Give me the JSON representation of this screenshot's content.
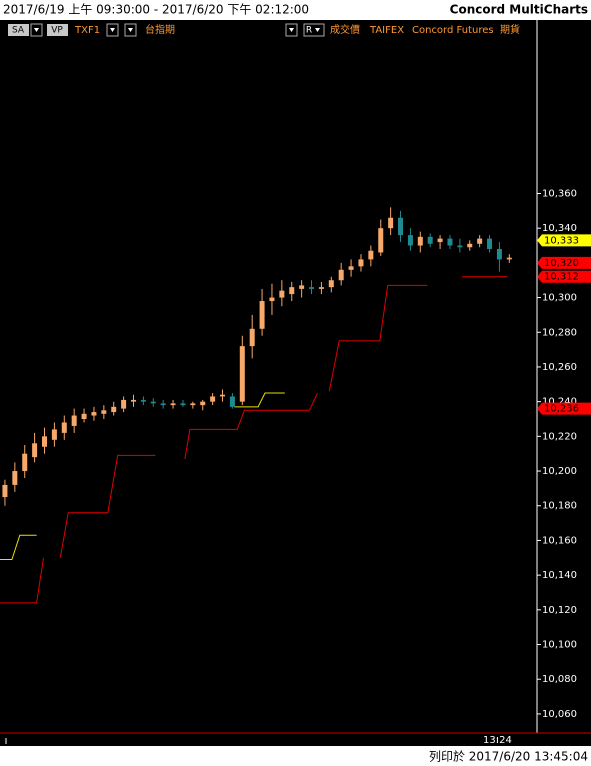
{
  "chart_data": {
    "type": "candlestick",
    "title": "2017/6/19 上午 09:30:00 - 2017/6/20 下午 02:12:00",
    "app_name": "Concord MultiCharts",
    "toolbar_left": [
      "SA",
      "VP",
      "TXF1",
      "台指期"
    ],
    "toolbar_right": [
      "R",
      "成交價",
      "TAIFEX",
      "Concord Futures",
      "期貨"
    ],
    "footer": "列印於 2017/6/20 13:45:04",
    "up_color": "#f6a96b",
    "down_color": "#1f8a8f",
    "ylim": [
      10049,
      10460
    ],
    "yticks": [
      {
        "value": 10060,
        "label": "10,060"
      },
      {
        "value": 10080,
        "label": "10,080"
      },
      {
        "value": 10100,
        "label": "10,100"
      },
      {
        "value": 10120,
        "label": "10,120"
      },
      {
        "value": 10140,
        "label": "10,140"
      },
      {
        "value": 10160,
        "label": "10,160"
      },
      {
        "value": 10180,
        "label": "10,180"
      },
      {
        "value": 10200,
        "label": "10,200"
      },
      {
        "value": 10220,
        "label": "10,220"
      },
      {
        "value": 10240,
        "label": "10,240"
      },
      {
        "value": 10260,
        "label": "10,260"
      },
      {
        "value": 10280,
        "label": "10,280"
      },
      {
        "value": 10300,
        "label": "10,300"
      },
      {
        "value": 10320,
        "label": "10,320"
      },
      {
        "value": 10340,
        "label": "10,340"
      },
      {
        "value": 10360,
        "label": "10,360"
      }
    ],
    "xlim": [
      -0.5,
      53.8
    ],
    "xticks": [
      {
        "value": 49.8,
        "label": "13:24"
      }
    ],
    "ohlc": [
      [
        10185,
        10195,
        10180,
        10192
      ],
      [
        10192,
        10205,
        10188,
        10200
      ],
      [
        10200,
        10215,
        10196,
        10210
      ],
      [
        10208,
        10222,
        10205,
        10216
      ],
      [
        10214,
        10225,
        10210,
        10220
      ],
      [
        10218,
        10228,
        10214,
        10224
      ],
      [
        10222,
        10232,
        10218,
        10228
      ],
      [
        10226,
        10236,
        10222,
        10232
      ],
      [
        10230,
        10236,
        10228,
        10233
      ],
      [
        10232,
        10237,
        10229,
        10234
      ],
      [
        10233,
        10238,
        10230,
        10235
      ],
      [
        10234,
        10240,
        10232,
        10237
      ],
      [
        10236,
        10243,
        10234,
        10241
      ],
      [
        10240,
        10244,
        10237,
        10241
      ],
      [
        10241,
        10243,
        10238,
        10240
      ],
      [
        10240,
        10242,
        10237,
        10239
      ],
      [
        10239,
        10241,
        10236,
        10238
      ],
      [
        10238,
        10241,
        10236,
        10239
      ],
      [
        10239,
        10241,
        10237,
        10238
      ],
      [
        10238,
        10240,
        10236,
        10239
      ],
      [
        10238,
        10241,
        10235,
        10240
      ],
      [
        10240,
        10245,
        10238,
        10243
      ],
      [
        10243,
        10247,
        10240,
        10244
      ],
      [
        10243,
        10245,
        10236,
        10237
      ],
      [
        10240,
        10278,
        10238,
        10272
      ],
      [
        10272,
        10290,
        10265,
        10282
      ],
      [
        10282,
        10305,
        10278,
        10298
      ],
      [
        10298,
        10308,
        10290,
        10300
      ],
      [
        10300,
        10310,
        10295,
        10304
      ],
      [
        10302,
        10309,
        10298,
        10306
      ],
      [
        10305,
        10310,
        10300,
        10307
      ],
      [
        10306,
        10310,
        10302,
        10305
      ],
      [
        10305,
        10309,
        10302,
        10306
      ],
      [
        10306,
        10312,
        10303,
        10310
      ],
      [
        10310,
        10320,
        10307,
        10316
      ],
      [
        10316,
        10322,
        10312,
        10318
      ],
      [
        10318,
        10325,
        10315,
        10322
      ],
      [
        10322,
        10330,
        10318,
        10327
      ],
      [
        10326,
        10345,
        10324,
        10340
      ],
      [
        10340,
        10352,
        10336,
        10346
      ],
      [
        10346,
        10350,
        10332,
        10336
      ],
      [
        10336,
        10340,
        10327,
        10330
      ],
      [
        10330,
        10338,
        10326,
        10335
      ],
      [
        10335,
        10337,
        10329,
        10331
      ],
      [
        10332,
        10336,
        10328,
        10334
      ],
      [
        10334,
        10336,
        10328,
        10330
      ],
      [
        10330,
        10334,
        10326,
        10329
      ],
      [
        10329,
        10333,
        10327,
        10331
      ],
      [
        10331,
        10336,
        10329,
        10334
      ],
      [
        10334,
        10336,
        10326,
        10328
      ],
      [
        10328,
        10332,
        10315,
        10322
      ],
      [
        10322,
        10325,
        10320,
        10323
      ]
    ],
    "lines": [
      {
        "color": "#e00000",
        "x": [
          -0.5,
          3.2,
          3.9,
          null,
          5.6,
          6.4,
          10.4,
          11.4,
          15.2,
          null,
          18.2,
          18.7,
          23.5,
          24.2,
          30.8,
          31.6,
          null,
          32.8,
          33.8,
          37.9,
          38.7,
          42.7,
          null,
          46.2,
          50.8
        ],
        "values": [
          10124,
          10124,
          10150,
          null,
          10150,
          10176,
          10176,
          10209,
          10209,
          null,
          10207,
          10224,
          10224,
          10235,
          10235,
          10245,
          null,
          10246,
          10275,
          10275,
          10307,
          10307,
          null,
          10312,
          10312
        ]
      },
      {
        "color": "#e8e000",
        "x": [
          -0.5,
          0.7,
          1.5,
          3.2,
          null,
          23.2,
          25.6,
          26.3,
          28.3
        ],
        "values": [
          10149,
          10149,
          10163,
          10163,
          null,
          10237,
          10237,
          10245,
          10245
        ]
      }
    ],
    "markers": {
      "values": [
        10333,
        10320,
        10312,
        10236
      ],
      "value_labels": [
        "10,333",
        "10,320",
        "10,312",
        "10,236"
      ],
      "colors": [
        "#ffff00",
        "#ff0000",
        "#ff0000",
        "#ff0000"
      ]
    }
  }
}
